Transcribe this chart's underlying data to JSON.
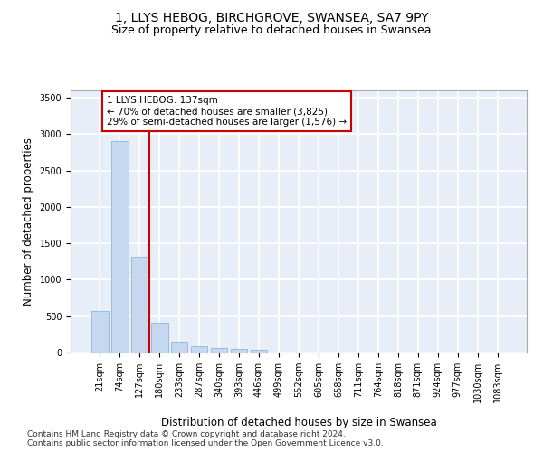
{
  "title": "1, LLYS HEBOG, BIRCHGROVE, SWANSEA, SA7 9PY",
  "subtitle": "Size of property relative to detached houses in Swansea",
  "xlabel": "Distribution of detached houses by size in Swansea",
  "ylabel": "Number of detached properties",
  "categories": [
    "21sqm",
    "74sqm",
    "127sqm",
    "180sqm",
    "233sqm",
    "287sqm",
    "340sqm",
    "393sqm",
    "446sqm",
    "499sqm",
    "552sqm",
    "605sqm",
    "658sqm",
    "711sqm",
    "764sqm",
    "818sqm",
    "871sqm",
    "924sqm",
    "977sqm",
    "1030sqm",
    "1083sqm"
  ],
  "values": [
    570,
    2910,
    1320,
    410,
    155,
    85,
    60,
    50,
    40,
    0,
    0,
    0,
    0,
    0,
    0,
    0,
    0,
    0,
    0,
    0,
    0
  ],
  "bar_color": "#c5d8f0",
  "bar_edge_color": "#7aadd4",
  "background_color": "#e8eef8",
  "grid_color": "#ffffff",
  "annotation_box_color": "#ffffff",
  "annotation_border_color": "#cc0000",
  "property_line_color": "#cc0000",
  "property_value": 137,
  "property_label": "1 LLYS HEBOG: 137sqm",
  "annotation_line1": "← 70% of detached houses are smaller (3,825)",
  "annotation_line2": "29% of semi-detached houses are larger (1,576) →",
  "ylim": [
    0,
    3600
  ],
  "yticks": [
    0,
    500,
    1000,
    1500,
    2000,
    2500,
    3000,
    3500
  ],
  "footnote1": "Contains HM Land Registry data © Crown copyright and database right 2024.",
  "footnote2": "Contains public sector information licensed under the Open Government Licence v3.0.",
  "title_fontsize": 10,
  "subtitle_fontsize": 9,
  "xlabel_fontsize": 8.5,
  "ylabel_fontsize": 8.5,
  "tick_fontsize": 7,
  "annotation_fontsize": 7.5,
  "footnote_fontsize": 6.5
}
